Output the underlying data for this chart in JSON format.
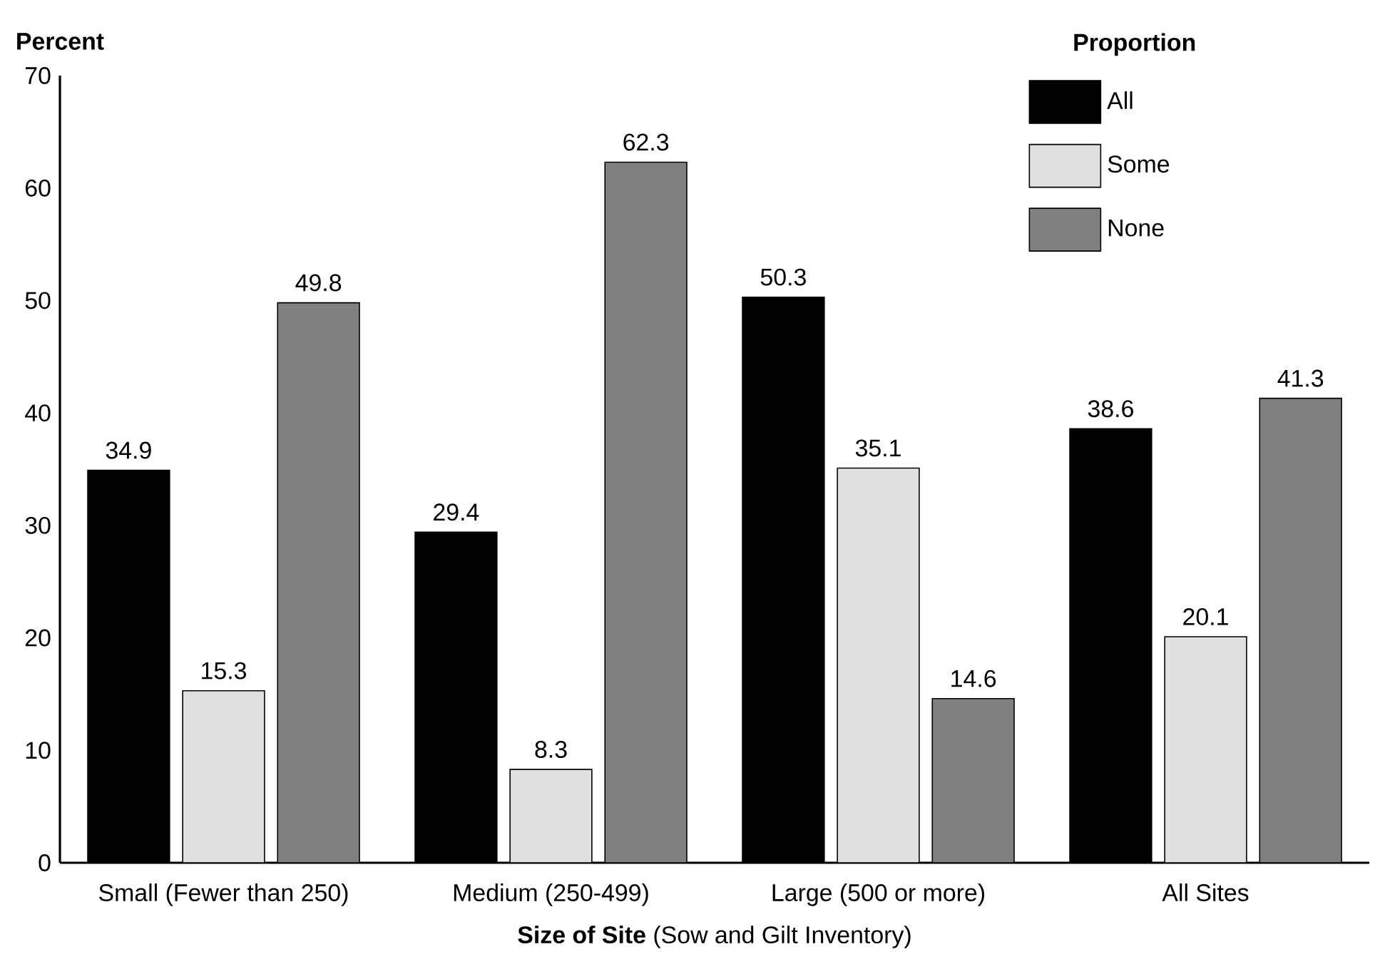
{
  "chart_data": {
    "type": "bar",
    "categories": [
      "Small (Fewer than 250)",
      "Medium (250-499)",
      "Large (500 or more)",
      "All Sites"
    ],
    "series": [
      {
        "name": "All",
        "color": "#000000",
        "values": [
          34.9,
          29.4,
          50.3,
          38.6
        ]
      },
      {
        "name": "Some",
        "color": "#e0e0e0",
        "values": [
          15.3,
          8.3,
          35.1,
          20.1
        ]
      },
      {
        "name": "None",
        "color": "#808080",
        "values": [
          49.8,
          62.3,
          14.6,
          41.3
        ]
      }
    ],
    "xlabel": "**Size of Site** (Sow and Gilt Inventory)",
    "ylabel": "Percent",
    "legend_title": "Proportion",
    "ylim": [
      0,
      70
    ],
    "yticks": [
      0,
      10,
      20,
      30,
      40,
      50,
      60,
      70
    ],
    "data_labels": true,
    "legend": "top right",
    "grid": false
  }
}
